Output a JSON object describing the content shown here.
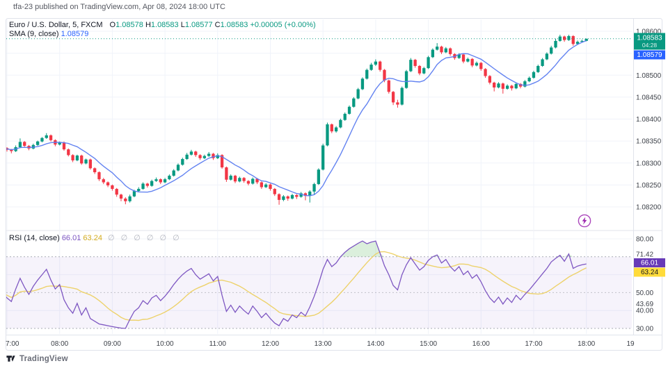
{
  "page": {
    "note": "tfa-23 published on TradingView.com, Apr 08, 2024 18:00 UTC"
  },
  "header": {
    "symbol": "Euro / U.S. Dollar, 5, FXCM",
    "ohlc": {
      "o_label": "O",
      "o": "1.08578",
      "h_label": "H",
      "h": "1.08583",
      "l_label": "L",
      "l": "1.08577",
      "c_label": "C",
      "c": "1.08583",
      "change": "+0.00005 (+0.00%)"
    },
    "sma_label": "SMA (9, close)",
    "sma_value": "1.08579"
  },
  "rsi_header": {
    "label": "RSI (14, close)",
    "value": "66.01",
    "ma_value": "63.24",
    "empties": "∅ ∅ ∅ ∅ ∅ ∅"
  },
  "price_scale": {
    "ticks": [
      {
        "v": 600,
        "label": "1.08600"
      },
      {
        "v": 550,
        "label": "1.08550"
      },
      {
        "v": 500,
        "label": "1.08500"
      },
      {
        "v": 450,
        "label": "1.08450"
      },
      {
        "v": 400,
        "label": "1.08400"
      },
      {
        "v": 350,
        "label": "1.08350"
      },
      {
        "v": 300,
        "label": "1.08300"
      },
      {
        "v": 250,
        "label": "1.08250"
      },
      {
        "v": 200,
        "label": "1.08200"
      }
    ],
    "last_badge": {
      "label": "1.08583",
      "countdown": "04:28"
    },
    "sma_badge": {
      "label": "1.08579"
    }
  },
  "rsi_scale": {
    "ticks": [
      {
        "v": 80,
        "label": "80.00"
      },
      {
        "v": 71.42,
        "label": "71.42"
      },
      {
        "v": 50,
        "label": "50.00"
      },
      {
        "v": 43.69,
        "label": "43.69"
      },
      {
        "v": 40,
        "label": "40.00"
      },
      {
        "v": 30,
        "label": "30.00"
      }
    ],
    "badges": [
      {
        "v": 66.01,
        "label": "66.01",
        "bg": "#673AB7",
        "fg": "#FFFFFF"
      },
      {
        "v": 63.24,
        "label": "63.24",
        "bg": "#FFDB3A",
        "fg": "#131722"
      }
    ],
    "bands": [
      70,
      50,
      30
    ]
  },
  "time_scale": {
    "ticks": [
      {
        "h": 0,
        "label": "7:00"
      },
      {
        "h": 1,
        "label": "08:00"
      },
      {
        "h": 2,
        "label": "09:00"
      },
      {
        "h": 3,
        "label": "10:00"
      },
      {
        "h": 4,
        "label": "11:00"
      },
      {
        "h": 5,
        "label": "12:00"
      },
      {
        "h": 6,
        "label": "13:00"
      },
      {
        "h": 7,
        "label": "14:00"
      },
      {
        "h": 8,
        "label": "15:00"
      },
      {
        "h": 9,
        "label": "16:00"
      },
      {
        "h": 10,
        "label": "17:00"
      },
      {
        "h": 11,
        "label": "18:00"
      },
      {
        "h": 12,
        "label": "19"
      }
    ]
  },
  "branding": {
    "name": "TradingView"
  },
  "theme": {
    "up": "#089981",
    "down": "#F23645",
    "sma_line": "#5B7CF0",
    "rsi_line": "#7E57C2",
    "rsi_ma_line": "#EDD26B",
    "rsi_band_fill": "rgba(126,87,194,0.07)",
    "rsi_overbought_fill": "rgba(76,175,80,0.20)",
    "grid": "#F0F3FA",
    "band_dash": "#9598A1",
    "border": "#E0E3EB",
    "axis_text": "#3C4048",
    "last_badge_bg": "#089981",
    "sma_badge_bg": "#2962FF",
    "boost": "#9C27B0"
  },
  "chart_data": {
    "type": "candlestick",
    "title": "Euro / U.S. Dollar, 5, FXCM",
    "symbol": "EUR/USD",
    "interval_minutes": 5,
    "exchange": "FXCM",
    "start_time": "06:55",
    "end_time": "18:00",
    "price_base": 1.08,
    "price_unit": 1e-05,
    "y_axis": {
      "min": 1.082,
      "max": 1.086
    },
    "x_tick_hours": [
      "7:00",
      "08:00",
      "09:00",
      "10:00",
      "11:00",
      "12:00",
      "13:00",
      "14:00",
      "15:00",
      "16:00",
      "17:00",
      "18:00",
      "19"
    ],
    "grid": true,
    "ohlc_note": "values are 1e-5 offsets above price_base; one bar per 5 minutes",
    "ohlc": [
      [
        337,
        339,
        331,
        334
      ],
      [
        334,
        336,
        326,
        330
      ],
      [
        330,
        332,
        322,
        327
      ],
      [
        327,
        340,
        325,
        336
      ],
      [
        336,
        356,
        334,
        348
      ],
      [
        348,
        350,
        337,
        339
      ],
      [
        339,
        341,
        329,
        333
      ],
      [
        333,
        344,
        331,
        341
      ],
      [
        341,
        351,
        339,
        349
      ],
      [
        349,
        359,
        347,
        357
      ],
      [
        357,
        368,
        355,
        363
      ],
      [
        363,
        365,
        349,
        352
      ],
      [
        352,
        354,
        338,
        342
      ],
      [
        342,
        349,
        340,
        347
      ],
      [
        347,
        349,
        328,
        331
      ],
      [
        331,
        333,
        315,
        318
      ],
      [
        318,
        320,
        302,
        306
      ],
      [
        306,
        319,
        304,
        317
      ],
      [
        317,
        319,
        296,
        299
      ],
      [
        299,
        310,
        297,
        308
      ],
      [
        308,
        310,
        285,
        288
      ],
      [
        288,
        290,
        275,
        279
      ],
      [
        279,
        281,
        259,
        263
      ],
      [
        263,
        266,
        252,
        256
      ],
      [
        256,
        258,
        245,
        249
      ],
      [
        249,
        251,
        237,
        241
      ],
      [
        241,
        243,
        223,
        228
      ],
      [
        228,
        230,
        213,
        219
      ],
      [
        219,
        222,
        206,
        213
      ],
      [
        213,
        228,
        210,
        224
      ],
      [
        224,
        239,
        222,
        236
      ],
      [
        236,
        245,
        234,
        241
      ],
      [
        241,
        256,
        239,
        253
      ],
      [
        253,
        255,
        244,
        248
      ],
      [
        248,
        262,
        246,
        259
      ],
      [
        259,
        267,
        257,
        263
      ],
      [
        263,
        265,
        252,
        256
      ],
      [
        256,
        266,
        254,
        263
      ],
      [
        263,
        274,
        261,
        271
      ],
      [
        271,
        286,
        269,
        283
      ],
      [
        283,
        299,
        281,
        296
      ],
      [
        296,
        312,
        294,
        309
      ],
      [
        309,
        323,
        307,
        319
      ],
      [
        319,
        330,
        317,
        326
      ],
      [
        326,
        328,
        314,
        318
      ],
      [
        318,
        320,
        307,
        311
      ],
      [
        311,
        319,
        309,
        316
      ],
      [
        316,
        325,
        314,
        321
      ],
      [
        321,
        323,
        307,
        311
      ],
      [
        311,
        322,
        309,
        318
      ],
      [
        318,
        320,
        287,
        290
      ],
      [
        290,
        292,
        257,
        262
      ],
      [
        262,
        274,
        260,
        271
      ],
      [
        271,
        273,
        254,
        258
      ],
      [
        258,
        269,
        256,
        266
      ],
      [
        266,
        268,
        255,
        259
      ],
      [
        259,
        261,
        249,
        253
      ],
      [
        253,
        267,
        251,
        264
      ],
      [
        264,
        266,
        252,
        256
      ],
      [
        256,
        258,
        241,
        245
      ],
      [
        245,
        254,
        243,
        251
      ],
      [
        251,
        253,
        237,
        241
      ],
      [
        241,
        243,
        225,
        229
      ],
      [
        229,
        231,
        205,
        216
      ],
      [
        216,
        227,
        213,
        224
      ],
      [
        224,
        226,
        214,
        219
      ],
      [
        219,
        230,
        217,
        227
      ],
      [
        227,
        229,
        218,
        223
      ],
      [
        223,
        234,
        221,
        231
      ],
      [
        231,
        233,
        215,
        225
      ],
      [
        225,
        238,
        210,
        235
      ],
      [
        235,
        255,
        228,
        252
      ],
      [
        252,
        288,
        250,
        285
      ],
      [
        285,
        344,
        283,
        340
      ],
      [
        340,
        392,
        338,
        388
      ],
      [
        388,
        390,
        368,
        372
      ],
      [
        372,
        384,
        369,
        381
      ],
      [
        381,
        401,
        379,
        398
      ],
      [
        398,
        415,
        396,
        412
      ],
      [
        412,
        431,
        410,
        428
      ],
      [
        428,
        450,
        426,
        447
      ],
      [
        447,
        471,
        445,
        468
      ],
      [
        468,
        495,
        466,
        492
      ],
      [
        492,
        515,
        490,
        512
      ],
      [
        512,
        528,
        510,
        524
      ],
      [
        524,
        536,
        521,
        531
      ],
      [
        531,
        533,
        508,
        512
      ],
      [
        512,
        514,
        484,
        488
      ],
      [
        488,
        490,
        458,
        462
      ],
      [
        462,
        464,
        432,
        438
      ],
      [
        438,
        444,
        426,
        433
      ],
      [
        433,
        474,
        431,
        471
      ],
      [
        471,
        512,
        469,
        509
      ],
      [
        509,
        539,
        507,
        535
      ],
      [
        535,
        537,
        517,
        521
      ],
      [
        521,
        523,
        500,
        504
      ],
      [
        504,
        519,
        502,
        516
      ],
      [
        516,
        544,
        514,
        541
      ],
      [
        541,
        561,
        539,
        558
      ],
      [
        558,
        573,
        556,
        565
      ],
      [
        565,
        567,
        548,
        552
      ],
      [
        552,
        564,
        550,
        561
      ],
      [
        561,
        563,
        544,
        548
      ],
      [
        548,
        550,
        535,
        539
      ],
      [
        539,
        550,
        537,
        547
      ],
      [
        547,
        549,
        527,
        531
      ],
      [
        531,
        540,
        529,
        537
      ],
      [
        537,
        539,
        518,
        522
      ],
      [
        522,
        531,
        520,
        528
      ],
      [
        528,
        530,
        510,
        514
      ],
      [
        514,
        516,
        494,
        498
      ],
      [
        498,
        500,
        479,
        483
      ],
      [
        483,
        485,
        463,
        472
      ],
      [
        472,
        484,
        470,
        481
      ],
      [
        481,
        483,
        458,
        469
      ],
      [
        469,
        479,
        467,
        476
      ],
      [
        476,
        478,
        465,
        470
      ],
      [
        470,
        483,
        468,
        480
      ],
      [
        480,
        482,
        470,
        474
      ],
      [
        474,
        489,
        472,
        486
      ],
      [
        486,
        497,
        484,
        494
      ],
      [
        494,
        510,
        492,
        507
      ],
      [
        507,
        524,
        505,
        521
      ],
      [
        521,
        539,
        519,
        536
      ],
      [
        536,
        552,
        534,
        549
      ],
      [
        549,
        567,
        547,
        563
      ],
      [
        563,
        583,
        561,
        578
      ],
      [
        578,
        592,
        576,
        588
      ],
      [
        588,
        590,
        576,
        580
      ],
      [
        580,
        592,
        578,
        589
      ],
      [
        589,
        591,
        567,
        571
      ],
      [
        571,
        579,
        569,
        576
      ],
      [
        576,
        581,
        574,
        578
      ],
      [
        578,
        583,
        577,
        583
      ]
    ],
    "overlays": [
      {
        "type": "sma",
        "period": 9,
        "source": "close",
        "last": 1.08579
      }
    ],
    "panes": [
      {
        "type": "rsi",
        "period": 14,
        "source": "close",
        "last": 66.01,
        "ma": {
          "type": "sma",
          "period": 14,
          "last": 63.24
        },
        "bands": [
          70,
          50,
          30
        ],
        "axis": {
          "min": 27,
          "max": 81
        },
        "values": [
          50,
          47,
          45,
          52,
          58,
          53,
          49,
          53.5,
          57,
          60,
          63,
          57,
          52,
          54.5,
          46,
          41.5,
          38.5,
          44,
          37.5,
          41.5,
          35.5,
          34,
          32.5,
          32,
          31.5,
          31,
          30.6,
          30.2,
          30,
          35,
          39.5,
          41.5,
          45.5,
          43.5,
          47,
          48.5,
          45.5,
          48,
          51,
          54.5,
          57.5,
          60,
          62,
          63.5,
          60,
          57.5,
          59,
          60.5,
          56.5,
          59,
          48.5,
          39.5,
          43,
          39,
          42.5,
          40,
          38,
          42.5,
          39.5,
          36,
          38.5,
          35.5,
          33,
          31.5,
          35.5,
          34,
          37.5,
          36,
          39,
          37,
          42,
          48,
          55,
          63,
          68.5,
          64.5,
          66.5,
          70,
          72.5,
          74.5,
          76,
          77.5,
          78.8,
          77.3,
          78.2,
          78.8,
          72,
          65,
          60,
          54,
          51.5,
          60,
          65.5,
          69.5,
          66,
          62.5,
          64.5,
          68,
          70,
          71,
          66.5,
          68.5,
          64.5,
          62,
          64.5,
          60,
          62,
          58,
          60,
          56,
          51,
          47,
          44.5,
          47.5,
          43.6,
          47,
          44.5,
          48.5,
          46,
          49,
          51.5,
          54.5,
          57.5,
          60.5,
          63.5,
          67.1,
          69.1,
          70.8,
          67.5,
          71.6,
          63.5,
          64.8,
          65.5,
          66.01
        ]
      }
    ],
    "last_price": 1.08583,
    "bar_countdown": "04:28"
  }
}
